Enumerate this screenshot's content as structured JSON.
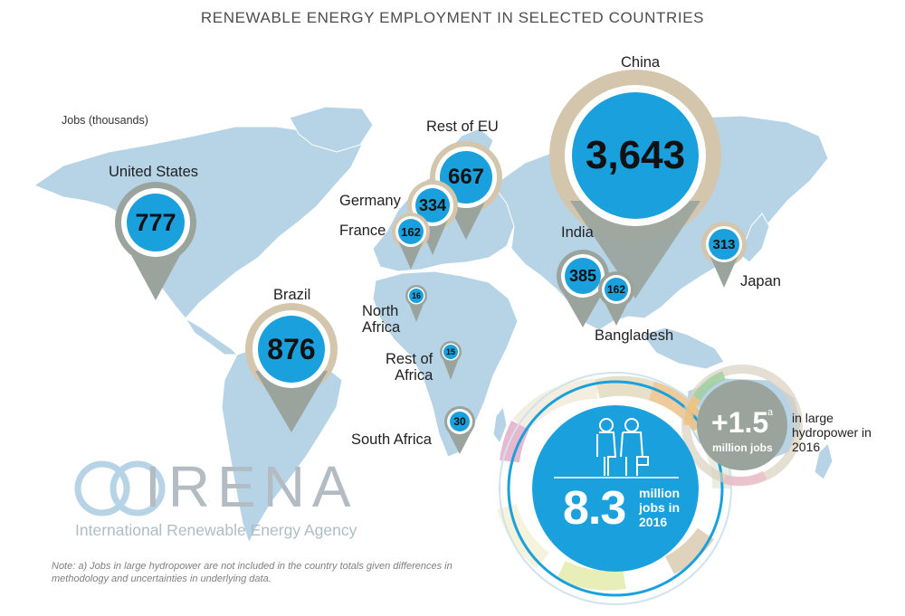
{
  "title": "RENEWABLE ENERGY EMPLOYMENT IN SELECTED COUNTRIES",
  "unit_label": "Jobs (thousands)",
  "colors": {
    "continent": "#b7d3e6",
    "bubble": "#1aa0dc",
    "pin": "#9aa39c",
    "ring": "#d4c6ad",
    "title": "#4d4d4d"
  },
  "chart_data": {
    "type": "map",
    "title": "RENEWABLE ENERGY EMPLOYMENT IN SELECTED COUNTRIES",
    "unit": "Jobs (thousands)",
    "categories": [
      "China",
      "Brazil",
      "United States",
      "Rest of EU",
      "India",
      "Germany",
      "Japan",
      "France",
      "Bangladesh",
      "South Africa",
      "North Africa",
      "Rest of Africa"
    ],
    "values": [
      3643,
      876,
      777,
      667,
      385,
      334,
      313,
      162,
      162,
      30,
      16,
      15
    ]
  },
  "markers": [
    {
      "id": "china",
      "label": "China",
      "value_text": "3,643"
    },
    {
      "id": "brazil",
      "label": "Brazil",
      "value_text": "876"
    },
    {
      "id": "usa",
      "label": "United States",
      "value_text": "777"
    },
    {
      "id": "resteu",
      "label": "Rest of EU",
      "value_text": "667"
    },
    {
      "id": "india",
      "label": "India",
      "value_text": "385"
    },
    {
      "id": "germany",
      "label": "Germany",
      "value_text": "334"
    },
    {
      "id": "japan",
      "label": "Japan",
      "value_text": "313"
    },
    {
      "id": "france",
      "label": "France",
      "value_text": "162"
    },
    {
      "id": "bangladesh",
      "label": "Bangladesh",
      "value_text": "162"
    },
    {
      "id": "southafrica",
      "label": "South Africa",
      "value_text": "30"
    },
    {
      "id": "northafrica",
      "label": "North\nAfrica",
      "value_text": "16"
    },
    {
      "id": "restafrica",
      "label": "Rest of\nAfrica",
      "value_text": "15"
    }
  ],
  "total": {
    "number": "8.3",
    "unit": "million jobs in 2016"
  },
  "hydro": {
    "number": "+1.5",
    "superscript": "a",
    "unit": "million jobs",
    "note": "in large hydropower in 2016"
  },
  "logo": {
    "name": "IRENA",
    "agency": "International Renewable Energy Agency"
  },
  "footnote": "Note: a) Jobs in large hydropower are not included in the country totals given differences in methodology and uncertainties in underlying data."
}
